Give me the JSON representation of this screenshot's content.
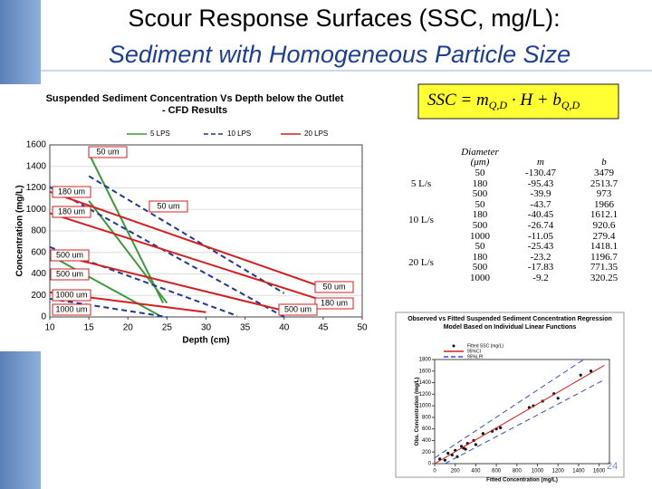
{
  "slide": {
    "title": "Scour Response Surfaces (SSC, mg/L):",
    "subtitle": "Sediment with Homogeneous Particle Size",
    "page_number": "24",
    "equation": {
      "lhs": "SSC = m",
      "sub1": "Q,D",
      "mid": " · H + b",
      "sub2": "Q,D"
    }
  },
  "table": {
    "header": [
      "Diameter (μm)",
      "m",
      "b"
    ],
    "groups": [
      {
        "label": "5 L/s",
        "rows": [
          [
            "50",
            "-130.47",
            "3479"
          ],
          [
            "180",
            "-95.43",
            "2513.7"
          ],
          [
            "500",
            "-39.9",
            "973"
          ]
        ]
      },
      {
        "label": "10 L/s",
        "rows": [
          [
            "50",
            "-43.7",
            "1966"
          ],
          [
            "180",
            "-40.45",
            "1612.1"
          ],
          [
            "500",
            "-26.74",
            "920.6"
          ],
          [
            "1000",
            "-11.05",
            "279.4"
          ]
        ]
      },
      {
        "label": "20 L/s",
        "rows": [
          [
            "50",
            "-25.43",
            "1418.1"
          ],
          [
            "180",
            "-23.2",
            "1196.7"
          ],
          [
            "500",
            "-17.83",
            "771.35"
          ],
          [
            "1000",
            "-9.2",
            "320.25"
          ]
        ]
      }
    ]
  },
  "chart_data": [
    {
      "type": "line",
      "title": "Suspended Sediment Concentration Vs Depth below the Outlet - CFD Results",
      "x_label": "Depth (cm)",
      "y_label": "Concentration (mg/L)",
      "xlim": [
        10,
        50
      ],
      "xticks": [
        10,
        15,
        20,
        25,
        30,
        35,
        40,
        45,
        50
      ],
      "ylim": [
        0,
        1600
      ],
      "yticks": [
        0,
        200,
        400,
        600,
        800,
        1000,
        1200,
        1400,
        1600
      ],
      "grid": true,
      "series": [
        {
          "name": "5 LPS",
          "color": "#3c9a3c",
          "dash": false,
          "lines": [
            {
              "x": [
                15,
                24.5
              ],
              "values": [
                1520,
                130
              ]
            },
            {
              "x": [
                15,
                25
              ],
              "values": [
                1080,
                130
              ]
            },
            {
              "x": [
                10,
                24
              ],
              "values": [
                574,
                15
              ]
            }
          ]
        },
        {
          "name": "10 LPS",
          "color": "#1f3a93",
          "dash": true,
          "lines": [
            {
              "x": [
                15,
                40
              ],
              "values": [
                1310,
                220
              ]
            },
            {
              "x": [
                10,
                40
              ],
              "values": [
                1208,
                0
              ]
            },
            {
              "x": [
                10,
                34
              ],
              "values": [
                650,
                10
              ]
            },
            {
              "x": [
                10,
                25
              ],
              "values": [
                169,
                0
              ]
            }
          ]
        },
        {
          "name": "20 LPS",
          "color": "#d42020",
          "dash": false,
          "lines": [
            {
              "x": [
                10,
                45
              ],
              "values": [
                1164,
                275
              ]
            },
            {
              "x": [
                10,
                45
              ],
              "values": [
                965,
                152
              ]
            },
            {
              "x": [
                10,
                40
              ],
              "values": [
                593,
                58
              ]
            },
            {
              "x": [
                10,
                30
              ],
              "values": [
                228,
                44
              ]
            }
          ]
        }
      ],
      "annotations": [
        "50 um",
        "180 um",
        "180 um",
        "50 um",
        "500 um",
        "500 um",
        "1000 um",
        "1000 um",
        "50 um",
        "180 um",
        "500 um"
      ]
    },
    {
      "type": "scatter",
      "title": "Observed vs Fitted Suspended Sediment Concentration Regression Model Based on Individual Linear Functions",
      "x_label": "Fitted Concentration (mg/L)",
      "y_label": "Obs. Concentration (mg/L)",
      "xlim": [
        0,
        1700
      ],
      "xticks": [
        0,
        200,
        400,
        600,
        800,
        1000,
        1200,
        1400,
        1600
      ],
      "ylim": [
        0,
        1800
      ],
      "yticks": [
        0,
        200,
        400,
        600,
        800,
        1000,
        1200,
        1400,
        1600,
        1800
      ],
      "series": [
        {
          "name": "Fitted SSC (mg/L)",
          "color": "#111111",
          "x": [
            50,
            100,
            130,
            170,
            200,
            220,
            260,
            280,
            300,
            320,
            380,
            400,
            470,
            560,
            600,
            640,
            920,
            960,
            1050,
            1160,
            1200,
            1420,
            1520
          ],
          "values": [
            80,
            60,
            180,
            150,
            230,
            120,
            300,
            270,
            250,
            350,
            400,
            330,
            520,
            560,
            600,
            620,
            970,
            1000,
            1080,
            1210,
            1130,
            1530,
            1600
          ]
        },
        {
          "name": "95%CI",
          "color": "#d42020",
          "dash": false,
          "lines": [
            {
              "x": [
                0,
                1650
              ],
              "values": [
                0,
                1700
              ]
            }
          ]
        },
        {
          "name": "95%LPI",
          "color": "#3050c0",
          "dash": true,
          "lines": [
            {
              "x": [
                0,
                1450
              ],
              "values": [
                100,
                1800
              ]
            },
            {
              "x": [
                100,
                1650
              ],
              "values": [
                0,
                1450
              ]
            }
          ]
        }
      ]
    }
  ]
}
